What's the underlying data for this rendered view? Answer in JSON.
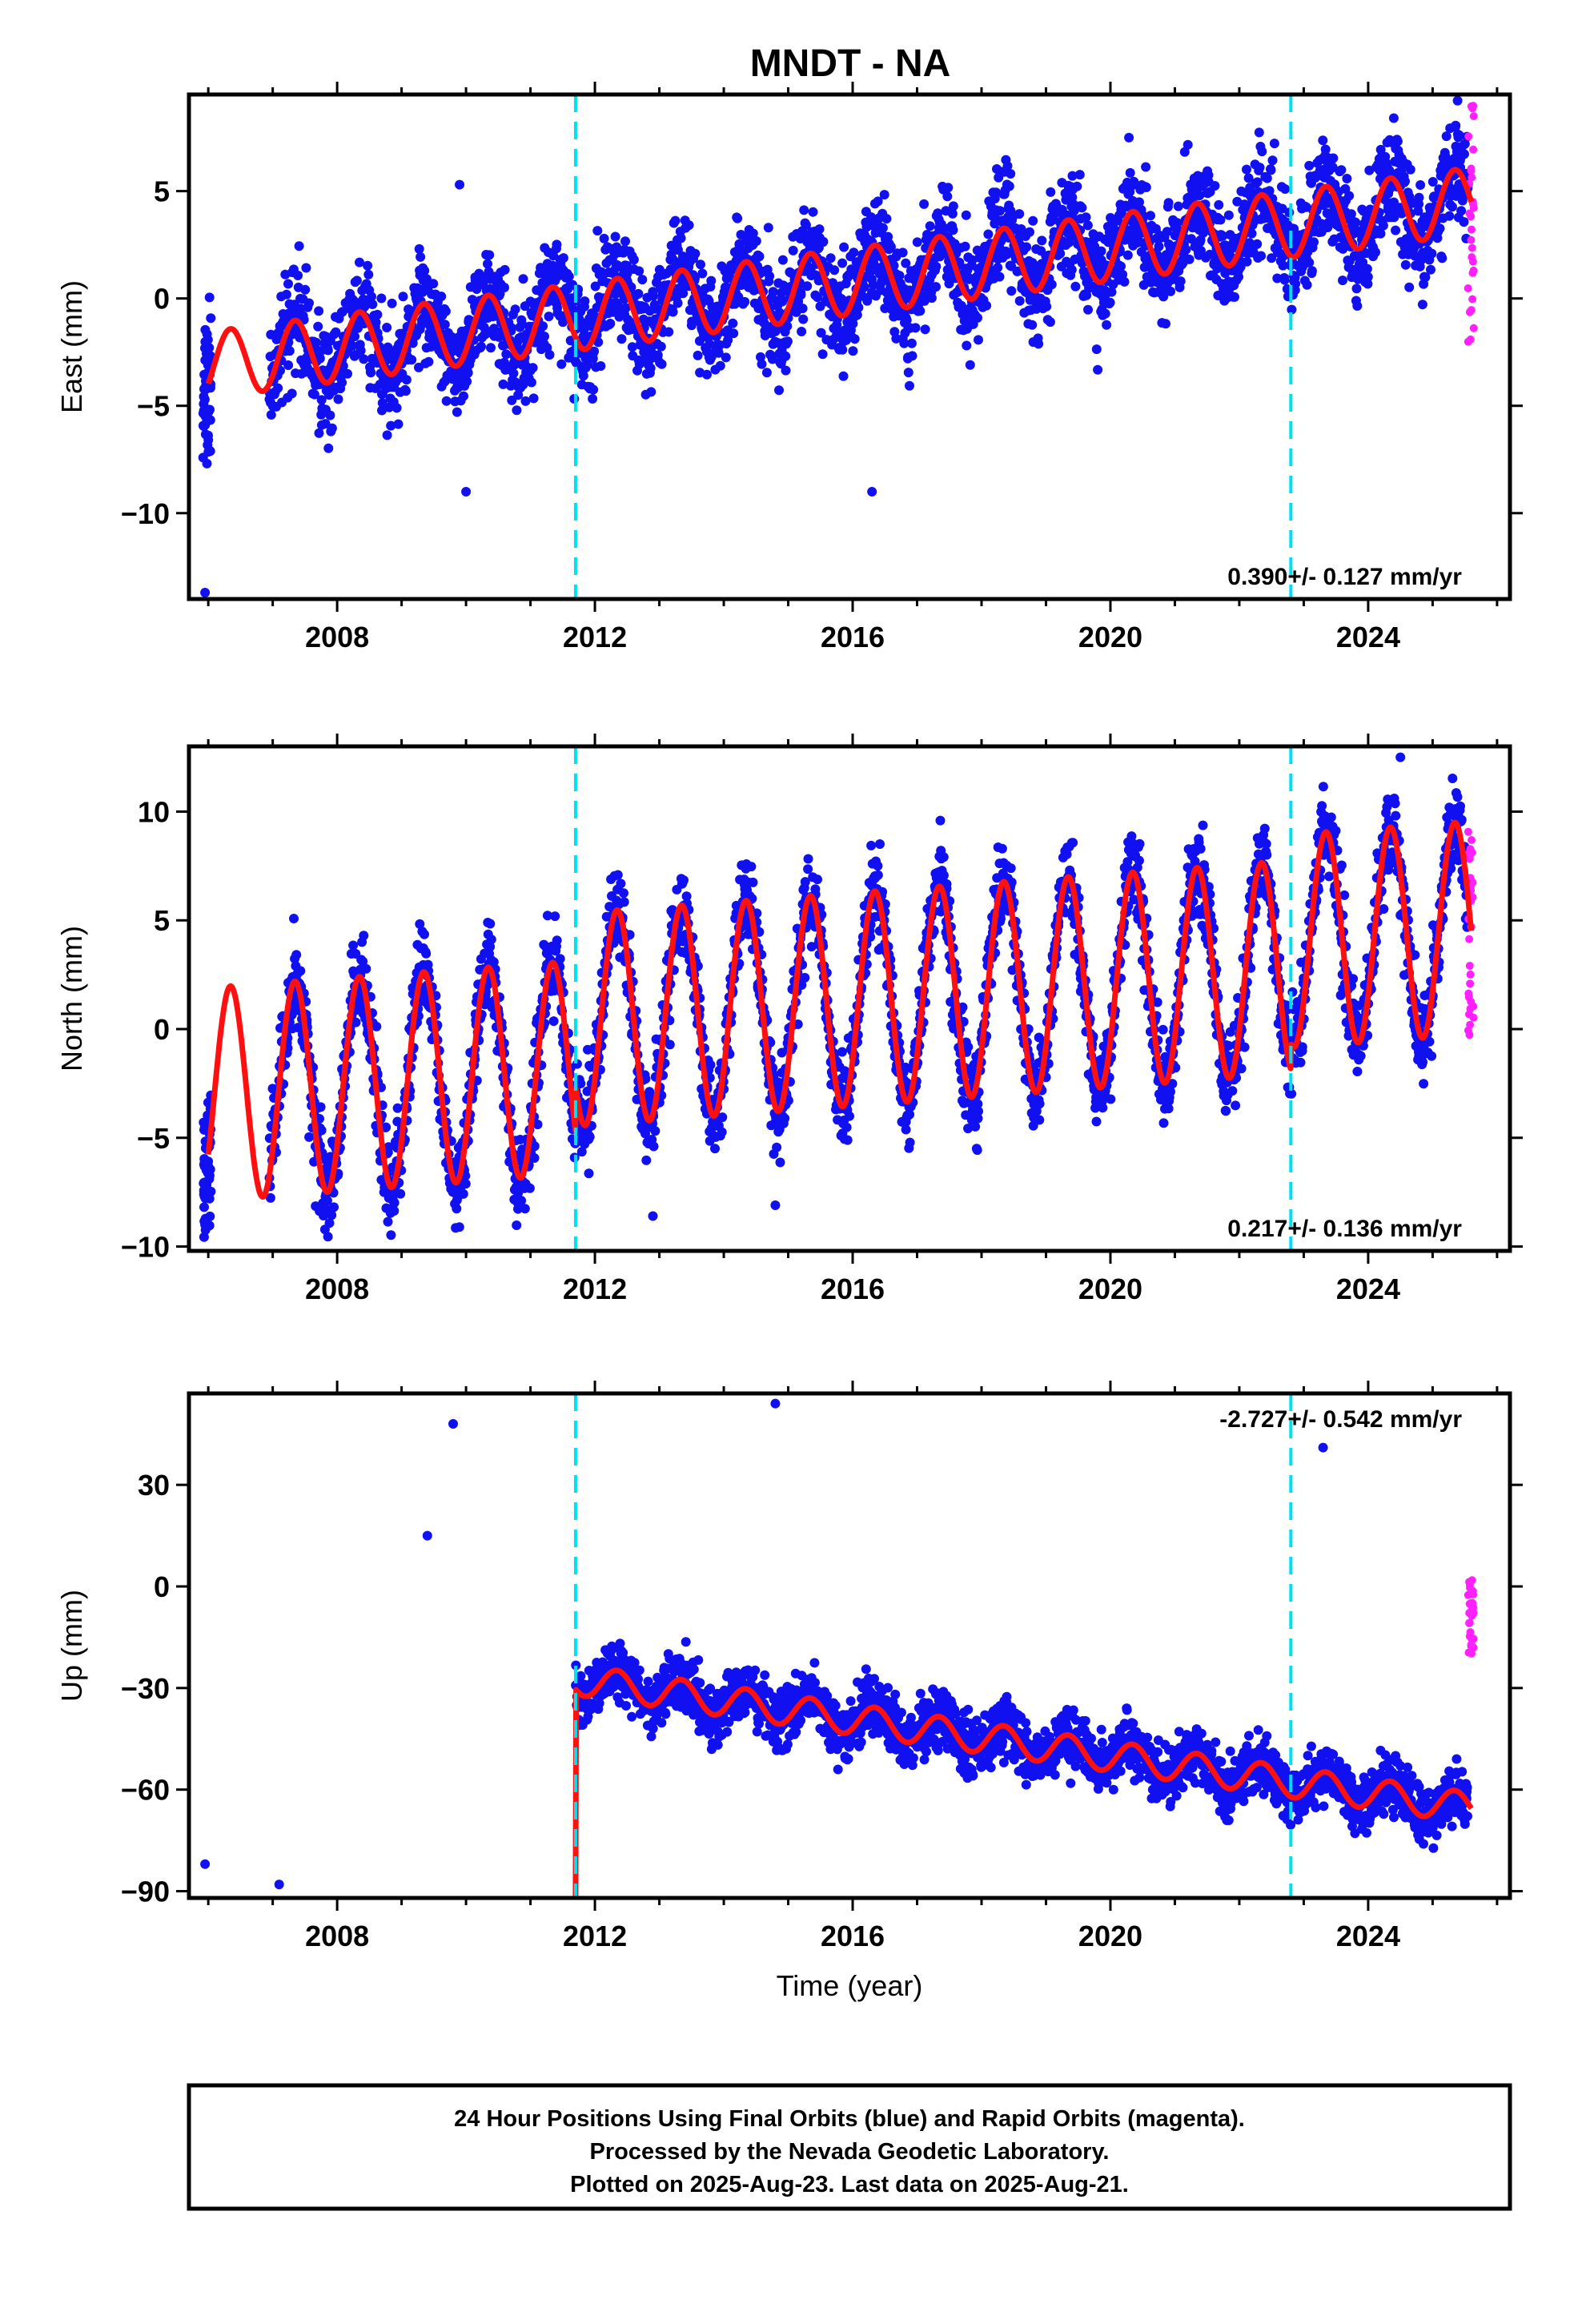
{
  "title": "MNDT - NA",
  "chart_data": [
    {
      "type": "scatter",
      "component": "East",
      "ylabel": "East (mm)",
      "xlabel": "",
      "xlim": [
        2005.7,
        2026.2
      ],
      "ylim": [
        -14,
        9.5
      ],
      "x_ticks": [
        2008,
        2012,
        2016,
        2020,
        2024
      ],
      "y_ticks": [
        -10,
        -5,
        0,
        5
      ],
      "y_tick_labels": [
        "−10",
        "−5",
        "0",
        "5"
      ],
      "rate_label": "0.390+/- 0.127 mm/yr",
      "event_lines": [
        2011.7,
        2022.8
      ],
      "model": {
        "offset": -3.1,
        "trend": 0.39,
        "annual_amp": 1.55,
        "start": 2006.0,
        "end": 2025.6,
        "steps": []
      },
      "data_start": 2006.95,
      "gap": [
        2006.05,
        2006.95
      ],
      "noise_sd": 1.2,
      "outliers": [
        {
          "x": 2005.95,
          "y": -13.7
        },
        {
          "x": 2009.9,
          "y": 5.3
        },
        {
          "x": 2016.3,
          "y": -9.0
        },
        {
          "x": 2010.0,
          "y": -9.0
        }
      ],
      "rapid_orbits": {
        "x_range": [
          2025.55,
          2025.64
        ],
        "y_range": [
          -2.5,
          9.0
        ]
      }
    },
    {
      "type": "scatter",
      "component": "North",
      "ylabel": "North (mm)",
      "xlabel": "",
      "xlim": [
        2005.7,
        2026.2
      ],
      "ylim": [
        -10.2,
        13
      ],
      "x_ticks": [
        2008,
        2012,
        2016,
        2020,
        2024
      ],
      "y_ticks": [
        -10,
        -5,
        0,
        5,
        10
      ],
      "y_tick_labels": [
        "−10",
        "−5",
        "0",
        "5",
        "10"
      ],
      "rate_label": "0.217+/- 0.136 mm/yr",
      "event_lines": [
        2011.7,
        2022.8
      ],
      "model": {
        "offset": -3.0,
        "trend": 0.217,
        "annual_amp": 4.9,
        "start": 2006.0,
        "end": 2025.6,
        "steps": [
          {
            "x": 2011.7,
            "dy": 2.2
          },
          {
            "x": 2022.8,
            "dy": 1.2
          }
        ]
      },
      "data_start": 2006.95,
      "gap": [
        2006.05,
        2006.95
      ],
      "noise_sd": 1.0,
      "outliers": [
        {
          "x": 2005.95,
          "y": -9.0
        },
        {
          "x": 2024.5,
          "y": 12.5
        },
        {
          "x": 2014.8,
          "y": -8.1
        },
        {
          "x": 2012.9,
          "y": -8.6
        }
      ],
      "rapid_orbits": {
        "x_range": [
          2025.55,
          2025.64
        ],
        "y_range": [
          -0.3,
          9.5
        ]
      }
    },
    {
      "type": "scatter",
      "component": "Up",
      "ylabel": "Up (mm)",
      "xlabel": "Time (year)",
      "xlim": [
        2005.7,
        2026.2
      ],
      "ylim": [
        -92,
        57
      ],
      "x_ticks": [
        2008,
        2012,
        2016,
        2020,
        2024
      ],
      "y_ticks": [
        -90,
        -60,
        -30,
        0,
        30
      ],
      "y_tick_labels": [
        "−90",
        "−60",
        "−30",
        "0",
        "30"
      ],
      "rate_label": "-2.727+/- 0.542 mm/yr",
      "event_lines": [
        2011.7,
        2022.8
      ],
      "model": {
        "offset": -104.0,
        "trend": -2.727,
        "annual_amp": 4.5,
        "start": 2006.0,
        "end": 2025.6,
        "steps": [
          {
            "x": 2011.7,
            "dy": 92.0
          }
        ]
      },
      "data_start": 2006.95,
      "gap": [
        2006.05,
        2006.95
      ],
      "noise_sd": 4.2,
      "segments": [
        {
          "x_range": [
            2006.95,
            2008.75
          ],
          "dy": -11
        },
        {
          "x_range": [
            2008.75,
            2010.9
          ],
          "dy": 8
        }
      ],
      "outliers": [
        {
          "x": 2009.8,
          "y": 48.0
        },
        {
          "x": 2014.8,
          "y": 54.0
        },
        {
          "x": 2005.95,
          "y": -82.0
        },
        {
          "x": 2009.4,
          "y": 15.0
        },
        {
          "x": 2023.3,
          "y": 41.0
        },
        {
          "x": 2007.1,
          "y": -88.0
        }
      ],
      "rapid_orbits": {
        "x_range": [
          2025.55,
          2025.64
        ],
        "y_range": [
          -20.0,
          3.0
        ]
      }
    }
  ],
  "footer": {
    "line1": "24 Hour Positions Using Final Orbits (blue) and Rapid Orbits (magenta).",
    "line2": "Processed by the Nevada Geodetic Laboratory.",
    "line3": "Plotted on 2025-Aug-23. Last data on 2025-Aug-21."
  },
  "colors": {
    "final_orbits": "#1010f0",
    "rapid_orbits": "#ff20ff",
    "model": "#ff1010",
    "event_line": "#00e0f0",
    "frame": "#000000"
  }
}
